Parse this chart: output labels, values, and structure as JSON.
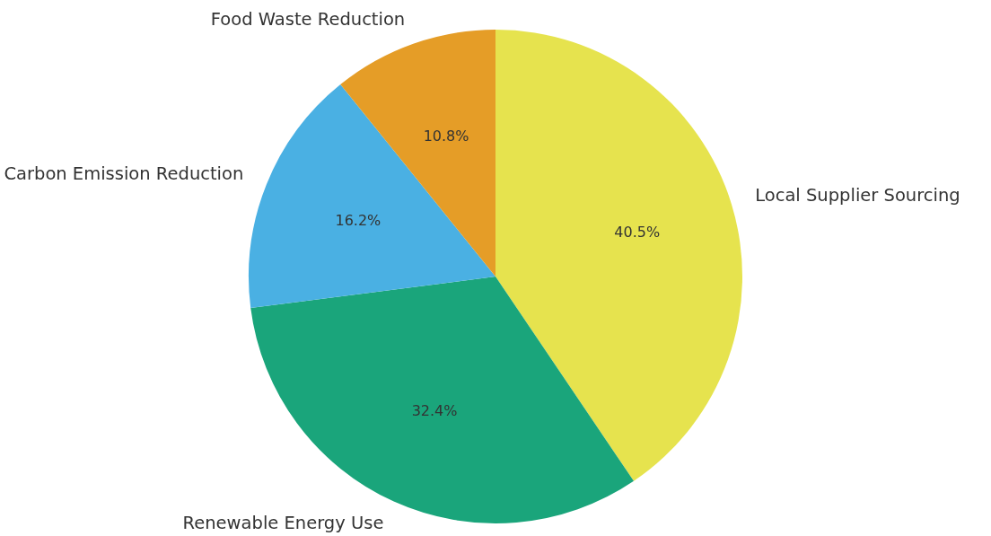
{
  "chart_data": {
    "type": "pie",
    "categories": [
      "Local Supplier Sourcing",
      "Renewable Energy Use",
      "Carbon Emission Reduction",
      "Food Waste Reduction"
    ],
    "values": [
      40.5,
      32.4,
      16.2,
      10.8
    ],
    "colors": [
      "#e6e34e",
      "#1aa57b",
      "#4ab0e3",
      "#e59d27"
    ],
    "value_labels": [
      "40.5%",
      "32.4%",
      "16.2%",
      "10.8%"
    ],
    "legend": false
  }
}
